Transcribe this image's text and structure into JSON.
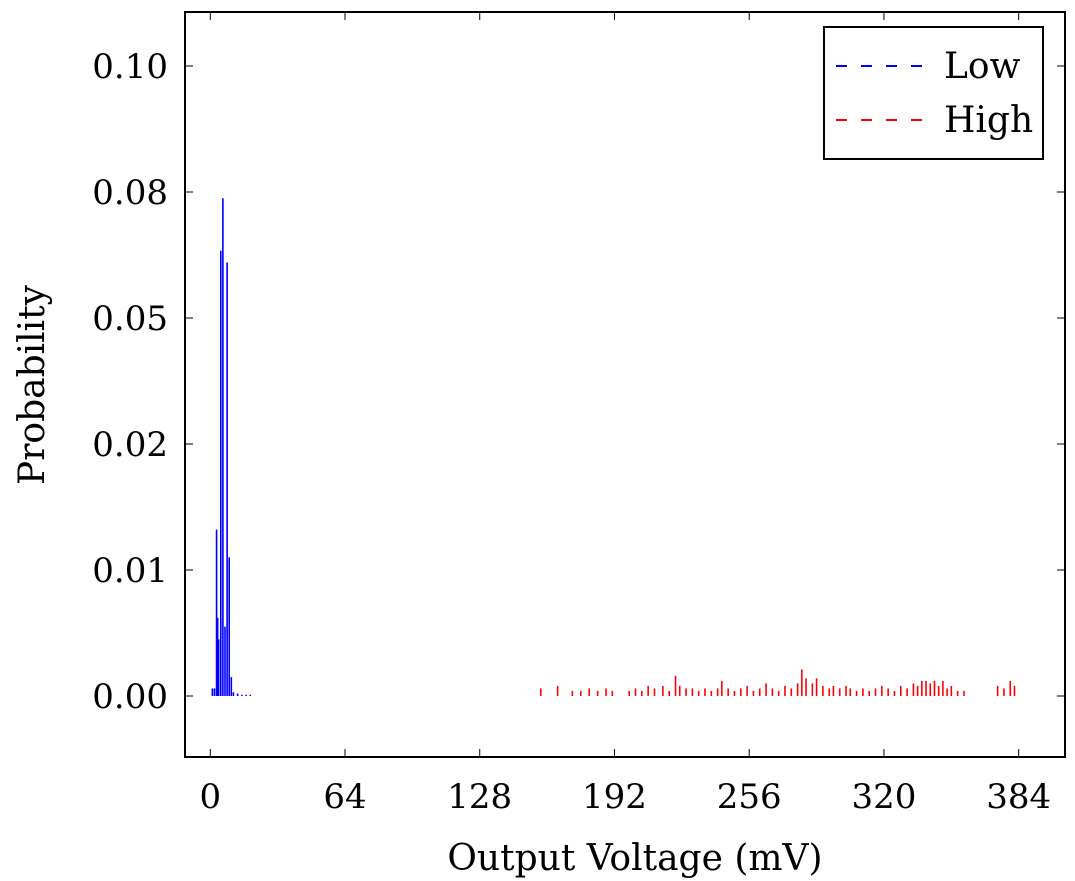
{
  "chart_data": {
    "type": "bar",
    "xlabel": "Output Voltage (mV)",
    "ylabel": "Probability",
    "xlim": [
      -12,
      406
    ],
    "ylim": [
      -0.006,
      0.1
    ],
    "grid": false,
    "legend_position": "top-right",
    "x_ticks": [
      0,
      64,
      128,
      192,
      256,
      320,
      384
    ],
    "x_tick_labels": [
      "0",
      "64",
      "128",
      "192",
      "256",
      "320",
      "384"
    ],
    "y_tick_labels": [
      "0.00",
      "0.01",
      "0.02",
      "0.05",
      "0.08",
      "0.10"
    ],
    "series": [
      {
        "name": "Low",
        "color": "#0000ff",
        "line_style": "dashed",
        "points": [
          [
            1,
            0.0006
          ],
          [
            2,
            0.0006
          ],
          [
            3,
            0.0132
          ],
          [
            3.5,
            0.0062
          ],
          [
            4,
            0.0045
          ],
          [
            5,
            0.066
          ],
          [
            6,
            0.0785
          ],
          [
            7,
            0.0055
          ],
          [
            8,
            0.0632
          ],
          [
            9,
            0.011
          ],
          [
            10,
            0.0015
          ],
          [
            11,
            0.0003
          ],
          [
            13,
            0.0002
          ],
          [
            15,
            0.0001
          ],
          [
            17,
            0.0001
          ],
          [
            19,
            0.0001
          ]
        ]
      },
      {
        "name": "High",
        "color": "#ff0000",
        "line_style": "dashed",
        "points": [
          [
            157,
            0.0006
          ],
          [
            165,
            0.0008
          ],
          [
            172,
            0.0004
          ],
          [
            176,
            0.0004
          ],
          [
            180,
            0.0006
          ],
          [
            184,
            0.0004
          ],
          [
            188,
            0.0006
          ],
          [
            191,
            0.0004
          ],
          [
            199,
            0.0004
          ],
          [
            202,
            0.0006
          ],
          [
            205,
            0.0004
          ],
          [
            208,
            0.0008
          ],
          [
            211,
            0.0006
          ],
          [
            215,
            0.0008
          ],
          [
            218,
            0.0004
          ],
          [
            221,
            0.0016
          ],
          [
            223,
            0.0008
          ],
          [
            226,
            0.0006
          ],
          [
            229,
            0.0006
          ],
          [
            232,
            0.0004
          ],
          [
            235,
            0.0006
          ],
          [
            238,
            0.0004
          ],
          [
            241,
            0.0006
          ],
          [
            243,
            0.0012
          ],
          [
            246,
            0.0006
          ],
          [
            249,
            0.0004
          ],
          [
            252,
            0.0006
          ],
          [
            255,
            0.0008
          ],
          [
            258,
            0.0004
          ],
          [
            261,
            0.0006
          ],
          [
            264,
            0.001
          ],
          [
            267,
            0.0006
          ],
          [
            270,
            0.0004
          ],
          [
            273,
            0.0008
          ],
          [
            276,
            0.0006
          ],
          [
            279,
            0.001
          ],
          [
            281,
            0.0021
          ],
          [
            283,
            0.0014
          ],
          [
            286,
            0.001
          ],
          [
            288,
            0.0014
          ],
          [
            291,
            0.0008
          ],
          [
            294,
            0.0006
          ],
          [
            296,
            0.0008
          ],
          [
            299,
            0.0006
          ],
          [
            302,
            0.0008
          ],
          [
            304,
            0.0006
          ],
          [
            307,
            0.0004
          ],
          [
            310,
            0.0006
          ],
          [
            313,
            0.0004
          ],
          [
            316,
            0.0006
          ],
          [
            319,
            0.0008
          ],
          [
            322,
            0.0006
          ],
          [
            325,
            0.0004
          ],
          [
            328,
            0.0008
          ],
          [
            331,
            0.0006
          ],
          [
            334,
            0.001
          ],
          [
            336,
            0.0008
          ],
          [
            338,
            0.0012
          ],
          [
            340,
            0.0012
          ],
          [
            342,
            0.001
          ],
          [
            344,
            0.0012
          ],
          [
            346,
            0.0008
          ],
          [
            348,
            0.0012
          ],
          [
            350,
            0.0006
          ],
          [
            352,
            0.0008
          ],
          [
            355,
            0.0004
          ],
          [
            358,
            0.0004
          ],
          [
            374,
            0.0008
          ],
          [
            377,
            0.0006
          ],
          [
            380,
            0.0012
          ],
          [
            382,
            0.0008
          ]
        ]
      }
    ]
  }
}
